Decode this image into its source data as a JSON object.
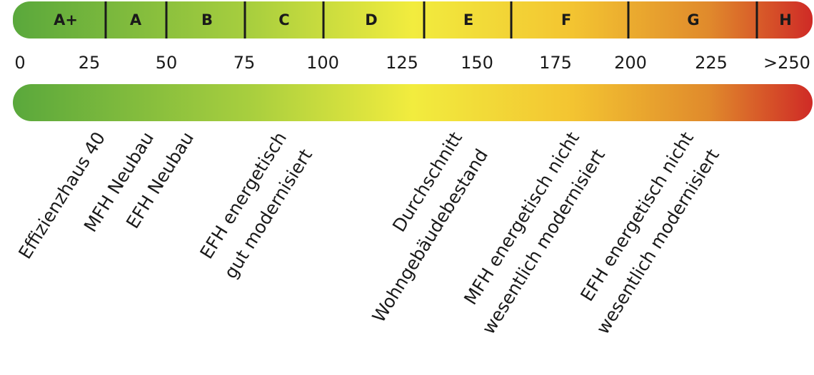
{
  "classes": [
    "A+",
    "A",
    "B",
    "C",
    "D",
    "E",
    "F",
    "G",
    "H"
  ],
  "scale": [
    "0",
    "25",
    "50",
    "75",
    "100",
    "125",
    "150",
    "175",
    "200",
    "225",
    ">250"
  ],
  "buildings": [
    {
      "lines": [
        "Effizienzhaus 40"
      ]
    },
    {
      "lines": [
        "MFH Neubau"
      ]
    },
    {
      "lines": [
        "EFH Neubau"
      ]
    },
    {
      "lines": [
        "EFH energetisch",
        "gut modernisiert"
      ]
    },
    {
      "lines": [
        "Durchschnitt",
        "Wohngebäudebestand"
      ]
    },
    {
      "lines": [
        "MFH energetisch nicht",
        "wesentlich modernisiert"
      ]
    },
    {
      "lines": [
        "EFH energetisch nicht",
        "wesentlich modernisiert"
      ]
    }
  ]
}
